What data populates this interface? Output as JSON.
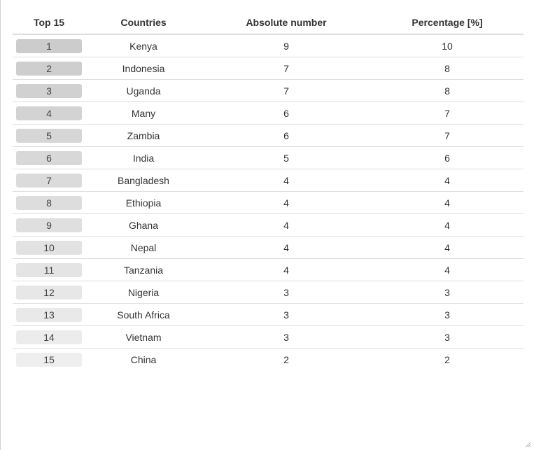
{
  "chart_data": {
    "type": "table",
    "columns": [
      "Top 15",
      "Countries",
      "Absolute number",
      "Percentage [%]"
    ],
    "rows": [
      {
        "rank": "1",
        "country": "Kenya",
        "absolute": "9",
        "percentage": "10"
      },
      {
        "rank": "2",
        "country": "Indonesia",
        "absolute": "7",
        "percentage": "8"
      },
      {
        "rank": "3",
        "country": "Uganda",
        "absolute": "7",
        "percentage": "8"
      },
      {
        "rank": "4",
        "country": "Many",
        "absolute": "6",
        "percentage": "7"
      },
      {
        "rank": "5",
        "country": "Zambia",
        "absolute": "6",
        "percentage": "7"
      },
      {
        "rank": "6",
        "country": "India",
        "absolute": "5",
        "percentage": "6"
      },
      {
        "rank": "7",
        "country": "Bangladesh",
        "absolute": "4",
        "percentage": "4"
      },
      {
        "rank": "8",
        "country": "Ethiopia",
        "absolute": "4",
        "percentage": "4"
      },
      {
        "rank": "9",
        "country": "Ghana",
        "absolute": "4",
        "percentage": "4"
      },
      {
        "rank": "10",
        "country": "Nepal",
        "absolute": "4",
        "percentage": "4"
      },
      {
        "rank": "11",
        "country": "Tanzania",
        "absolute": "4",
        "percentage": "4"
      },
      {
        "rank": "12",
        "country": "Nigeria",
        "absolute": "3",
        "percentage": "3"
      },
      {
        "rank": "13",
        "country": "South Africa",
        "absolute": "3",
        "percentage": "3"
      },
      {
        "rank": "14",
        "country": "Vietnam",
        "absolute": "3",
        "percentage": "3"
      },
      {
        "rank": "15",
        "country": "China",
        "absolute": "2",
        "percentage": "2"
      }
    ],
    "colors": {
      "badge_darkest": "#cccccc",
      "badge_lightest": "#eeeeee",
      "row_divider": "#dddddd"
    }
  }
}
